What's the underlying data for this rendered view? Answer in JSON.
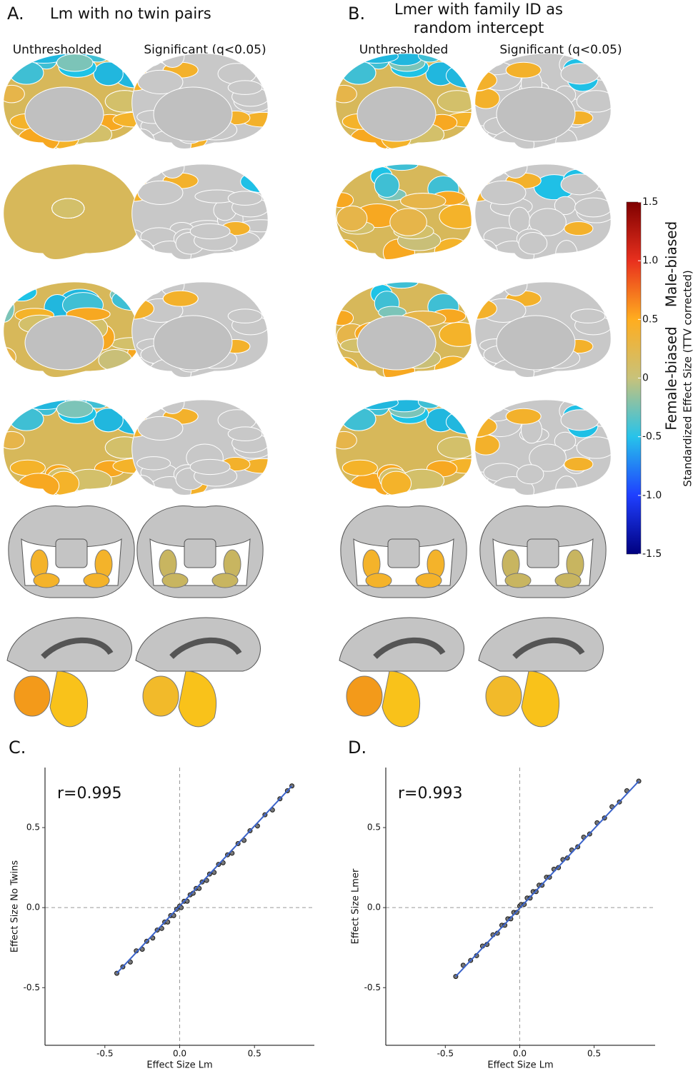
{
  "panels": {
    "a": {
      "letter": "A.",
      "title": "Lm with no twin pairs",
      "col1": "Unthresholded",
      "col2": "Significant (q<0.05)"
    },
    "b": {
      "letter": "B.",
      "title_lines": [
        "Lmer with family ID as",
        "random intercept"
      ],
      "col1": "Unthresholded",
      "col2": "Significant (q<0.05)"
    }
  },
  "colorbar": {
    "lim": [
      -1.5,
      1.5
    ],
    "ticks": [
      1.5,
      {
        "value": 1,
        "label": "1.0"
      },
      0.5,
      0,
      -0.5,
      {
        "value": -1,
        "label": "-1.0"
      },
      -1.5
    ],
    "colors": [
      "#00007f",
      "#1f3fff",
      "#27c3ea",
      "#c8c27a",
      "#ffad1f",
      "#e8301e",
      "#7f0000"
    ],
    "top_label": "Male-biased",
    "bottom_label": "Female-biased",
    "label": "Standardized Effect Size (TTV corrected)"
  },
  "chart_data": [
    {
      "type": "scatter",
      "letter": "C.",
      "annotation": "r=0.995",
      "x_label": "Effect Size Lm",
      "y_label": "Effect Size No Twins",
      "xlim": [
        -0.9,
        0.9
      ],
      "ylim": [
        -0.86,
        0.875
      ],
      "xticks": [
        -0.5,
        {
          "value": 0,
          "label": "0.0"
        },
        0.5
      ],
      "yticks": [
        -0.5,
        {
          "value": 0,
          "label": "0.0"
        },
        0.5
      ],
      "color": "#1a1a1a",
      "x": [
        -0.42,
        -0.38,
        -0.33,
        -0.29,
        -0.25,
        -0.22,
        -0.18,
        -0.15,
        -0.12,
        -0.1,
        -0.08,
        -0.06,
        -0.04,
        -0.02,
        0,
        0.01,
        0.03,
        0.05,
        0.07,
        0.09,
        0.11,
        0.13,
        0.15,
        0.18,
        0.2,
        0.23,
        0.26,
        0.29,
        0.32,
        0.35,
        0.39,
        0.43,
        0.47,
        0.52,
        0.57,
        0.62,
        0.67,
        0.72,
        0.75
      ],
      "values": [
        -0.41,
        -0.37,
        -0.34,
        -0.27,
        -0.26,
        -0.21,
        -0.19,
        -0.14,
        -0.13,
        -0.09,
        -0.09,
        -0.05,
        -0.05,
        -0.01,
        0.01,
        0.0,
        0.04,
        0.04,
        0.08,
        0.09,
        0.12,
        0.12,
        0.16,
        0.17,
        0.21,
        0.22,
        0.27,
        0.28,
        0.33,
        0.34,
        0.4,
        0.42,
        0.48,
        0.51,
        0.58,
        0.61,
        0.68,
        0.73,
        0.76
      ],
      "fit": {
        "color": "#3a62c9",
        "x": [
          -0.42,
          0.75
        ],
        "values": [
          -0.41,
          0.76
        ]
      }
    },
    {
      "type": "scatter",
      "letter": "D.",
      "annotation": "r=0.993",
      "x_label": "Effect Size Lm",
      "y_label": "Effect Size Lmer",
      "xlim": [
        -0.9,
        0.91
      ],
      "ylim": [
        -0.86,
        0.875
      ],
      "xticks": [
        -0.5,
        {
          "value": 0,
          "label": "0.0"
        },
        0.5
      ],
      "yticks": [
        -0.5,
        {
          "value": 0,
          "label": "0.0"
        },
        0.5
      ],
      "color": "#1a1a1a",
      "x": [
        -0.43,
        -0.38,
        -0.33,
        -0.29,
        -0.25,
        -0.22,
        -0.18,
        -0.15,
        -0.12,
        -0.1,
        -0.08,
        -0.06,
        -0.04,
        -0.02,
        0,
        0.01,
        0.03,
        0.05,
        0.07,
        0.09,
        0.11,
        0.13,
        0.15,
        0.18,
        0.2,
        0.23,
        0.26,
        0.29,
        0.32,
        0.35,
        0.39,
        0.43,
        0.47,
        0.52,
        0.57,
        0.62,
        0.67,
        0.72,
        0.8
      ],
      "values": [
        -0.43,
        -0.36,
        -0.33,
        -0.3,
        -0.24,
        -0.23,
        -0.17,
        -0.16,
        -0.11,
        -0.11,
        -0.07,
        -0.07,
        -0.03,
        -0.03,
        0.01,
        0.02,
        0.02,
        0.06,
        0.06,
        0.1,
        0.1,
        0.14,
        0.14,
        0.19,
        0.19,
        0.24,
        0.25,
        0.3,
        0.31,
        0.36,
        0.38,
        0.44,
        0.46,
        0.53,
        0.56,
        0.63,
        0.66,
        0.73,
        0.79
      ],
      "fit": {
        "color": "#3a62c9",
        "x": [
          -0.43,
          0.8
        ],
        "values": [
          -0.43,
          0.79
        ]
      }
    }
  ]
}
